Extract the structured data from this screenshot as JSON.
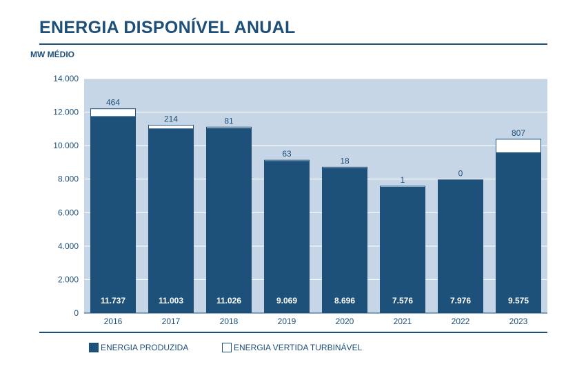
{
  "header": {
    "title": "ENERGIA DISPONÍVEL ANUAL",
    "unit": "MW MÉDIO"
  },
  "colors": {
    "produzida": "#1d5179",
    "vertida": "#ffffff",
    "plot_bg": "#c7d6e6",
    "text": "#1d4f79"
  },
  "chart_data": {
    "type": "bar",
    "stacked": true,
    "categories": [
      "2016",
      "2017",
      "2018",
      "2019",
      "2020",
      "2021",
      "2022",
      "2023"
    ],
    "series": [
      {
        "name": "ENERGIA PRODUZIDA",
        "values": [
          11737,
          11003,
          11026,
          9069,
          8696,
          7576,
          7976,
          9575
        ],
        "labels": [
          "11.737",
          "11.003",
          "11.026",
          "9.069",
          "8.696",
          "7.576",
          "7.976",
          "9.575"
        ]
      },
      {
        "name": "ENERGIA VERTIDA TURBINÁVEL",
        "values": [
          464,
          214,
          81,
          63,
          18,
          1,
          0,
          807
        ],
        "labels": [
          "464",
          "214",
          "81",
          "63",
          "18",
          "1",
          "0",
          "807"
        ]
      }
    ],
    "ylim": [
      0,
      14000
    ],
    "yticks": [
      0,
      2000,
      4000,
      6000,
      8000,
      10000,
      12000,
      14000
    ],
    "ytick_labels": [
      "0",
      "2.000",
      "4.000",
      "6.000",
      "8.000",
      "10.000",
      "12.000",
      "14.000"
    ],
    "grid": true,
    "legend": "bottom"
  }
}
